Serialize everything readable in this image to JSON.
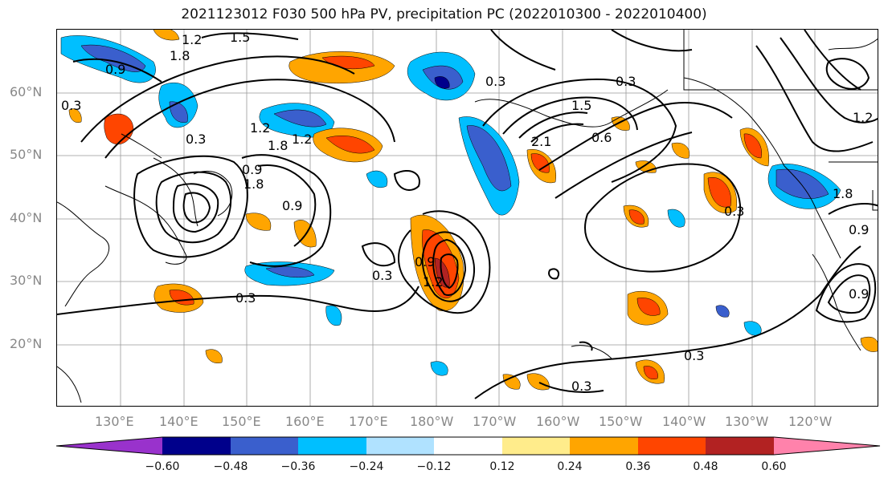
{
  "title": "2021123012 F030 500 hPa PV, precipitation PC (2022010300 - 2022010400)",
  "latitude_labels": [
    "60°N",
    "50°N",
    "40°N",
    "30°N",
    "20°N"
  ],
  "longitude_labels": [
    "130°E",
    "140°E",
    "150°E",
    "160°E",
    "170°E",
    "180°W",
    "170°W",
    "160°W",
    "150°W",
    "140°W",
    "130°W",
    "120°W"
  ],
  "contour_labels": [
    "1.2",
    "1.5",
    "0.9",
    "1.8",
    "0.3",
    "0.3",
    "0.3",
    "1.2",
    "1.8",
    "1.2",
    "0.9",
    "0.9",
    "1.8",
    "0.3",
    "0.3",
    "2.1",
    "1.5",
    "0.6",
    "0.9",
    "1.2",
    "0.3",
    "0.9",
    "0.3",
    "0.3",
    "1.2",
    "1.8",
    "0.9",
    "0.3"
  ],
  "colorbar": {
    "ticks": [
      "−0.60",
      "−0.48",
      "−0.36",
      "−0.24",
      "−0.12",
      "0.12",
      "0.24",
      "0.36",
      "0.48",
      "0.60"
    ],
    "colors": [
      "#9932CC",
      "#00008B",
      "#3A5FCD",
      "#00BFFF",
      "#B0E2FF",
      "#FFFFFF",
      "#FFEC8B",
      "#FFA500",
      "#FF4500",
      "#B22222",
      "#FF82AB"
    ]
  }
}
